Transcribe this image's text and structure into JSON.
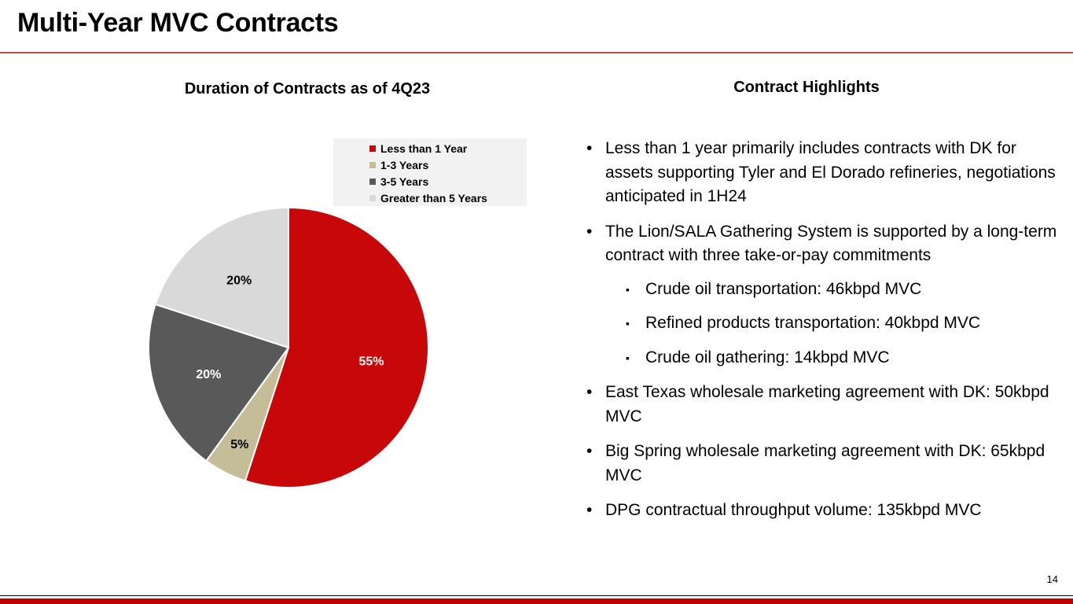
{
  "header": {
    "title": "Multi-Year MVC Contracts"
  },
  "chart_section": {
    "title": "Duration of Contracts as of 4Q23"
  },
  "highlights": {
    "title": "Contract Highlights",
    "bullets": {
      "b1": "Less than 1 year primarily includes contracts with DK for assets supporting Tyler and El Dorado refineries, negotiations anticipated in 1H24",
      "b2": "The Lion/SALA Gathering System is supported by a long-term contract with three take-or-pay commitments",
      "s1": "Crude oil transportation: 46kbpd MVC",
      "s2": "Refined products transportation: 40kbpd MVC",
      "s3": "Crude oil gathering: 14kbpd MVC",
      "b3": "East Texas wholesale marketing agreement with DK: 50kbpd MVC",
      "b4": "Big Spring wholesale marketing agreement with DK: 65kbpd MVC",
      "b5": "DPG contractual throughput volume: 135kbpd MVC"
    }
  },
  "chart_data": {
    "type": "pie",
    "title": "",
    "legend_position": "top-right",
    "slices": [
      {
        "label": "Less than 1 Year",
        "value": 55,
        "display": "55%",
        "color": "#c80808",
        "label_color": "#ffffff"
      },
      {
        "label": "1-3 Years",
        "value": 5,
        "display": "5%",
        "color": "#c5bd98",
        "label_color": "#000000"
      },
      {
        "label": "3-5 Years",
        "value": 20,
        "display": "20%",
        "color": "#595959",
        "label_color": "#ffffff"
      },
      {
        "label": "Greater than 5 Years",
        "value": 20,
        "display": "20%",
        "color": "#d9d9d9",
        "label_color": "#000000"
      }
    ]
  },
  "footer": {
    "page_number": "14",
    "bar_color": "#c00000"
  }
}
